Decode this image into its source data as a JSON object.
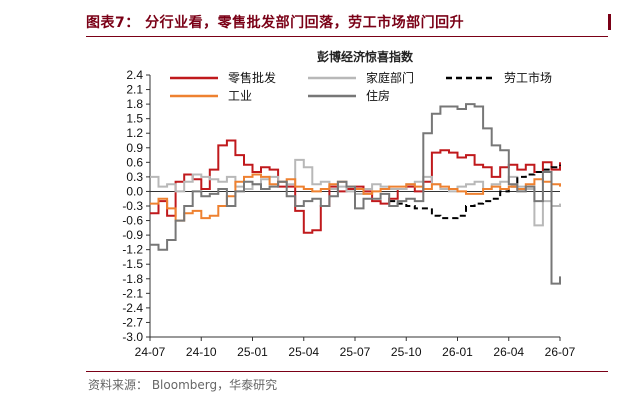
{
  "header": {
    "figure_title": "图表7：  分行业看，零售批发部门回落，劳工市场部门回升"
  },
  "footer": {
    "source": "资料来源：   Bloomberg，华泰研究"
  },
  "colors": {
    "retail": "#c0191c",
    "home": "#b8b8b8",
    "labor": "#000000",
    "industry": "#ee8130",
    "housing": "#777777",
    "accent": "#7a0016"
  },
  "chart_data": {
    "type": "line",
    "title": "彭博经济惊喜指数",
    "xlabel": "",
    "ylabel": "",
    "x_tick_labels": [
      "24-07",
      "24-10",
      "25-01",
      "25-04",
      "25-07",
      "25-10",
      "26-01",
      "26-04",
      "26-07"
    ],
    "x_range": [
      0,
      24
    ],
    "ylim": [
      -3.0,
      2.4
    ],
    "y_ticks": [
      2.4,
      2.1,
      1.8,
      1.5,
      1.2,
      0.9,
      0.6,
      0.3,
      0.0,
      -0.3,
      -0.6,
      -0.9,
      -1.2,
      -1.5,
      -1.8,
      -2.1,
      -2.4,
      -2.7,
      -3.0
    ],
    "y_tick_labels": [
      "2.4",
      "2.1",
      "1.8",
      "1.5",
      "1.2",
      "0.9",
      "0.6",
      "0.3",
      "0.0",
      "-0.3",
      "-0.6",
      "-0.9",
      "-1.2",
      "-1.5",
      "-1.8",
      "-2.1",
      "-2.4",
      "-2.7",
      "-3.0"
    ],
    "grid": false,
    "legend_position": "top",
    "series": [
      {
        "name": "零售批发",
        "color": "#c0191c",
        "dash": "solid",
        "x": [
          0,
          0.5,
          1,
          1.5,
          2,
          2.5,
          3,
          3.5,
          4,
          4.5,
          5,
          5.5,
          6,
          6.5,
          7,
          7.5,
          8,
          8.5,
          9,
          9.5,
          10,
          10.5,
          11,
          11.5,
          12,
          12.5,
          13,
          13.5,
          14,
          14.5,
          15,
          15.5,
          16,
          16.5,
          17,
          17.5,
          18,
          18.5,
          19,
          19.5,
          20,
          20.5,
          21,
          21.5,
          22,
          22.5,
          23,
          23.5,
          24
        ],
        "y": [
          -0.45,
          -0.2,
          -0.5,
          0.2,
          0.35,
          0.25,
          0.05,
          0.45,
          0.95,
          1.05,
          0.75,
          0.55,
          0.4,
          0.5,
          0.45,
          0.1,
          0.1,
          -0.4,
          -0.85,
          -0.8,
          -0.3,
          0.1,
          0.0,
          0.05,
          0.1,
          0.0,
          -0.2,
          -0.25,
          -0.15,
          0.05,
          0.1,
          0.0,
          0.2,
          0.8,
          0.85,
          0.8,
          0.7,
          0.75,
          0.55,
          0.5,
          0.3,
          0.5,
          0.55,
          0.45,
          0.55,
          0.4,
          0.6,
          0.45,
          0.6
        ]
      },
      {
        "name": "家庭部门",
        "color": "#b8b8b8",
        "dash": "solid",
        "x": [
          0,
          0.5,
          1,
          1.5,
          2,
          2.5,
          3,
          3.5,
          4,
          4.5,
          5,
          5.5,
          6,
          6.5,
          7,
          7.5,
          8,
          8.5,
          9,
          9.5,
          10,
          10.5,
          11,
          11.5,
          12,
          12.5,
          13,
          13.5,
          14,
          14.5,
          15,
          15.5,
          16,
          16.5,
          17,
          17.5,
          18,
          18.5,
          19,
          19.5,
          20,
          20.5,
          21,
          21.5,
          22,
          22.5,
          23,
          23.5,
          24
        ],
        "y": [
          0.3,
          0.1,
          0.15,
          0.0,
          0.2,
          0.35,
          0.3,
          0.25,
          0.2,
          0.3,
          0.1,
          0.05,
          0.15,
          0.25,
          0.3,
          0.2,
          0.15,
          0.65,
          0.5,
          0.15,
          0.2,
          0.05,
          0.1,
          0.0,
          -0.05,
          0.05,
          0.15,
          0.1,
          0.05,
          0.05,
          0.15,
          0.2,
          0.3,
          0.15,
          0.05,
          0.0,
          0.1,
          0.15,
          0.2,
          0.05,
          0.15,
          0.2,
          0.3,
          0.1,
          0.05,
          -0.7,
          -0.2,
          -0.3,
          -0.25
        ]
      },
      {
        "name": "劳工市场",
        "color": "#000000",
        "dash": "dashed",
        "x": [
          14,
          14.5,
          15,
          15.5,
          16,
          16.5,
          17,
          17.5,
          18,
          18.5,
          19,
          19.5,
          20,
          20.5,
          21,
          21.5,
          22,
          22.5,
          23,
          23.5,
          24
        ],
        "y": [
          -0.2,
          -0.25,
          -0.3,
          -0.35,
          -0.35,
          -0.5,
          -0.55,
          -0.55,
          -0.5,
          -0.3,
          -0.25,
          -0.2,
          -0.15,
          0.0,
          0.1,
          0.3,
          0.35,
          0.4,
          0.45,
          0.5,
          0.55
        ]
      },
      {
        "name": "工业",
        "color": "#ee8130",
        "dash": "solid",
        "x": [
          0,
          0.5,
          1,
          1.5,
          2,
          2.5,
          3,
          3.5,
          4,
          4.5,
          5,
          5.5,
          6,
          6.5,
          7,
          7.5,
          8,
          8.5,
          9,
          9.5,
          10,
          10.5,
          11,
          11.5,
          12,
          12.5,
          13,
          13.5,
          14,
          14.5,
          15,
          15.5,
          16,
          16.5,
          17,
          17.5,
          18,
          18.5,
          19,
          19.5,
          20,
          20.5,
          21,
          21.5,
          22,
          22.5,
          23,
          23.5,
          24
        ],
        "y": [
          -0.25,
          -0.15,
          -0.35,
          -0.6,
          -0.45,
          -0.4,
          -0.55,
          -0.5,
          -0.3,
          -0.1,
          0.2,
          0.3,
          0.35,
          0.3,
          0.15,
          0.2,
          0.25,
          0.1,
          0.05,
          0.0,
          0.05,
          0.15,
          0.2,
          0.1,
          0.05,
          -0.05,
          0.0,
          0.05,
          0.1,
          0.1,
          0.15,
          0.1,
          0.05,
          0.15,
          0.1,
          0.05,
          0.0,
          -0.05,
          -0.05,
          0.05,
          0.1,
          0.05,
          0.1,
          0.05,
          0.15,
          0.25,
          0.2,
          0.15,
          0.1
        ]
      },
      {
        "name": "住房",
        "color": "#777777",
        "dash": "solid",
        "x": [
          0,
          0.5,
          1,
          1.5,
          2,
          2.5,
          3,
          3.5,
          4,
          4.5,
          5,
          5.5,
          6,
          6.5,
          7,
          7.5,
          8,
          8.5,
          9,
          9.5,
          10,
          10.5,
          11,
          11.5,
          12,
          12.5,
          13,
          13.5,
          14,
          14.5,
          15,
          15.5,
          16,
          16.5,
          17,
          17.5,
          18,
          18.5,
          19,
          19.5,
          20,
          20.5,
          21,
          21.5,
          22,
          22.5,
          23,
          23.5,
          24
        ],
        "y": [
          -1.1,
          -1.2,
          -1.0,
          -0.6,
          -0.3,
          0.0,
          -0.1,
          -0.05,
          0.05,
          -0.3,
          0.0,
          0.2,
          0.15,
          0.05,
          0.1,
          0.2,
          -0.1,
          -0.3,
          -0.2,
          -0.15,
          -0.3,
          -0.1,
          0.2,
          0.1,
          -0.35,
          -0.15,
          -0.15,
          -0.05,
          -0.3,
          -0.2,
          -0.15,
          -0.2,
          1.2,
          1.6,
          1.75,
          1.75,
          1.7,
          1.8,
          1.75,
          1.3,
          0.95,
          0.85,
          0.15,
          0.0,
          0.1,
          -0.2,
          0.4,
          -1.9,
          -1.75
        ]
      }
    ]
  }
}
